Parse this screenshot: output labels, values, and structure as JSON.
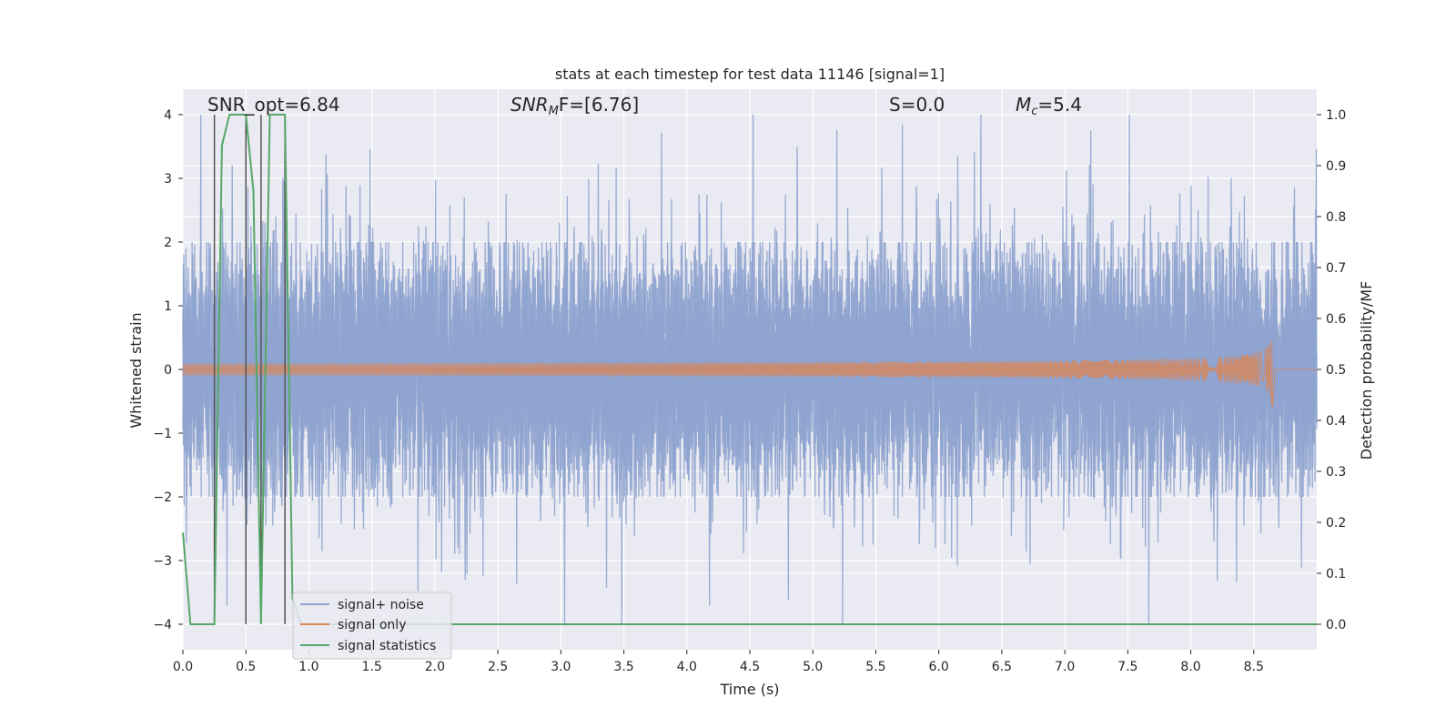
{
  "chart_data": {
    "type": "line",
    "title": "stats at each timestep for test data 11146 [signal=1]",
    "xlabel": "Time (s)",
    "ylabel_left": "Whitened strain",
    "ylabel_right": "Detection probability/MF",
    "xlim": [
      0.0,
      9.0
    ],
    "ylim_left": [
      -4.4,
      4.4
    ],
    "ylim_right": [
      -0.05,
      1.05
    ],
    "x_ticks": [
      "0.0",
      "0.5",
      "1.0",
      "1.5",
      "2.0",
      "2.5",
      "3.0",
      "3.5",
      "4.0",
      "4.5",
      "5.0",
      "5.5",
      "6.0",
      "6.5",
      "7.0",
      "7.5",
      "8.0",
      "8.5"
    ],
    "y_left_ticks": [
      "4",
      "3",
      "2",
      "1",
      "0",
      "−1",
      "−2",
      "−3",
      "−4"
    ],
    "y_right_ticks": [
      "1.0",
      "0.9",
      "0.8",
      "0.7",
      "0.6",
      "0.5",
      "0.4",
      "0.3",
      "0.2",
      "0.1",
      "0.0"
    ],
    "annotations": {
      "snr_opt": "SNR_opt=6.84",
      "snr_mf_base": "SNR",
      "snr_mf_sub": "M",
      "snr_mf_rest": "F=[6.76]",
      "s_value": "S=0.0",
      "mc_base": "M",
      "mc_sub": "c",
      "mc_rest": "=5.4"
    },
    "series": [
      {
        "name": "signal+ noise",
        "color": "#8fa4cf",
        "description_range": [
          -4.0,
          4.0
        ]
      },
      {
        "name": "signal only",
        "color": "#dd8452",
        "chirp_end_time": 8.65,
        "peak_amplitude": 0.7
      },
      {
        "name": "signal statistics",
        "color": "#55a868",
        "x": [
          0.0,
          0.06,
          0.12,
          0.19,
          0.25,
          0.31,
          0.37,
          0.44,
          0.5,
          0.56,
          0.62,
          0.69,
          0.75,
          0.81,
          0.87,
          0.94,
          1.0,
          9.0
        ],
        "y": [
          0.18,
          0.0,
          0.0,
          0.0,
          0.0,
          0.94,
          1.0,
          1.0,
          1.0,
          0.85,
          0.0,
          1.0,
          1.0,
          1.0,
          0.05,
          0.0,
          0.0,
          0.0
        ]
      }
    ],
    "vlines_x": [
      0.25,
      0.5,
      0.62,
      0.81
    ],
    "grid": true,
    "legend_position": "lower-left",
    "colors": {
      "background": "#eaeaf2",
      "grid": "#ffffff",
      "noise": "#8fa4cf",
      "signal": "#dd8452",
      "statistics": "#55a868",
      "vlines": "#555555"
    }
  }
}
